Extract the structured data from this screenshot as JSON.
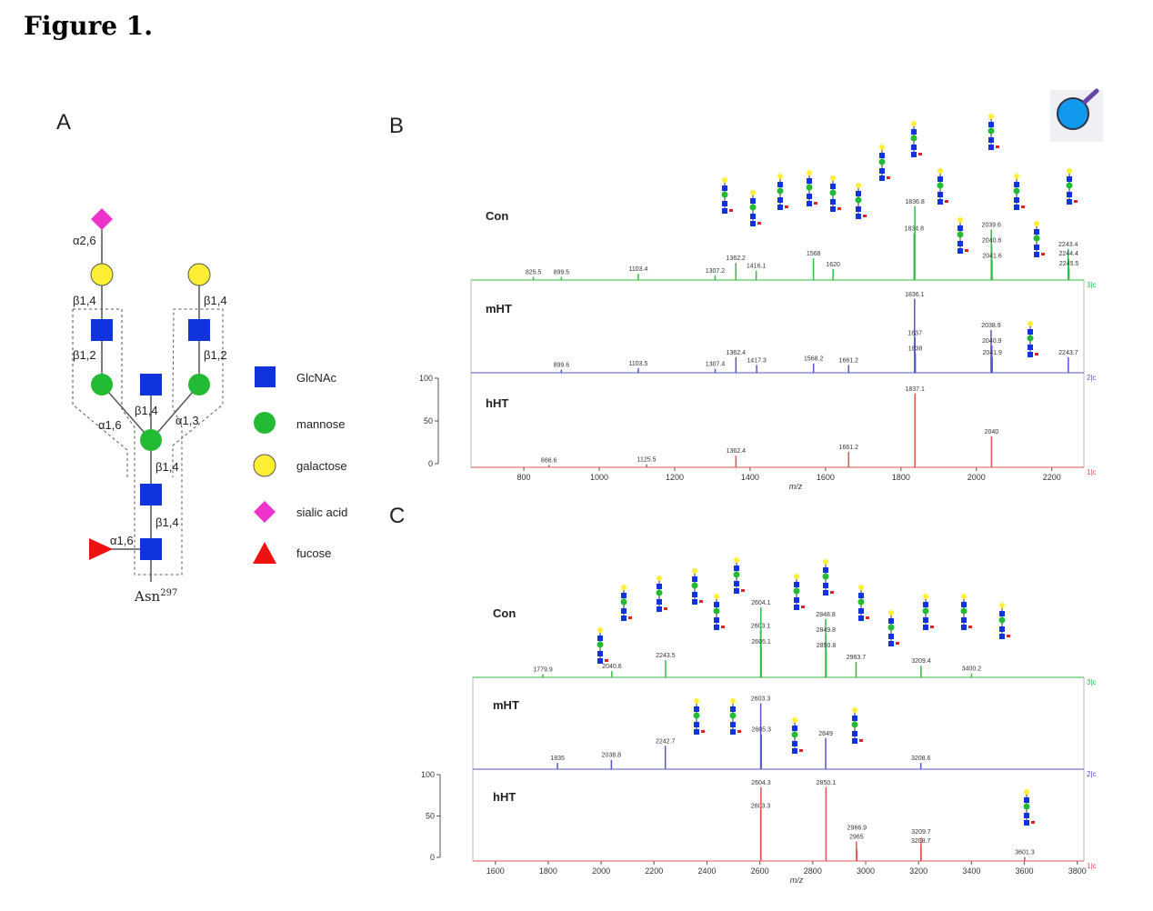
{
  "title": "Figure 1.",
  "panel_a": {
    "label": "A",
    "linkages": [
      "α2,6",
      "β1,4",
      "β1,2",
      "β1,4",
      "β1,2",
      "β1,4",
      "α1,6",
      "α1,3",
      "β1,4",
      "β1,4",
      "α1,6"
    ],
    "reducing_end": "Asn",
    "reducing_end_sup": "297",
    "legend": [
      "GlcNAc",
      "mannose",
      "galactose",
      "sialic acid",
      "fucose"
    ]
  },
  "panels": [
    {
      "label": "B",
      "xlim": [
        660,
        2285
      ],
      "xticks": [
        800,
        1000,
        1200,
        1400,
        1600,
        1800,
        2000,
        2200
      ],
      "xlabel": "m/z",
      "ylim": [
        0,
        100
      ],
      "yticks": [
        0,
        50,
        100
      ],
      "traces": [
        {
          "name": "Con",
          "scan": "3|c",
          "color": "#33bb44",
          "peaks": [
            {
              "mz": 825.5,
              "intensity": 4
            },
            {
              "mz": 899.5,
              "intensity": 4
            },
            {
              "mz": 1103.4,
              "intensity": 8
            },
            {
              "mz": 1307.2,
              "intensity": 6
            },
            {
              "mz": 1362.2,
              "intensity": 22
            },
            {
              "mz": 1416.1,
              "intensity": 12
            },
            {
              "mz": 1568.0,
              "intensity": 28
            },
            {
              "mz": 1620.0,
              "intensity": 14
            },
            {
              "mz": 1834.8,
              "intensity": 60
            },
            {
              "mz": 1836.8,
              "intensity": 95
            },
            {
              "mz": 2039.6,
              "intensity": 65
            },
            {
              "mz": 2040.6,
              "intensity": 45
            },
            {
              "mz": 2041.6,
              "intensity": 25
            },
            {
              "mz": 2243.4,
              "intensity": 40
            },
            {
              "mz": 2244.4,
              "intensity": 28
            },
            {
              "mz": 2245.5,
              "intensity": 15
            }
          ]
        },
        {
          "name": "mHT",
          "scan": "2|c",
          "color": "#5555cc",
          "peaks": [
            {
              "mz": 899.6,
              "intensity": 4
            },
            {
              "mz": 1103.5,
              "intensity": 6
            },
            {
              "mz": 1307.4,
              "intensity": 5
            },
            {
              "mz": 1362.4,
              "intensity": 20
            },
            {
              "mz": 1417.3,
              "intensity": 10
            },
            {
              "mz": 1568.2,
              "intensity": 12
            },
            {
              "mz": 1661.2,
              "intensity": 10
            },
            {
              "mz": 1836.1,
              "intensity": 95
            },
            {
              "mz": 1837.0,
              "intensity": 45
            },
            {
              "mz": 1838.0,
              "intensity": 25
            },
            {
              "mz": 2038.9,
              "intensity": 55
            },
            {
              "mz": 2040.9,
              "intensity": 35
            },
            {
              "mz": 2041.9,
              "intensity": 20
            },
            {
              "mz": 2243.7,
              "intensity": 20
            }
          ]
        },
        {
          "name": "hHT",
          "scan": "1|c",
          "color": "#e05555",
          "peaks": [
            {
              "mz": 866.6,
              "intensity": 3
            },
            {
              "mz": 1125.5,
              "intensity": 4
            },
            {
              "mz": 1362.4,
              "intensity": 15
            },
            {
              "mz": 1661.2,
              "intensity": 20
            },
            {
              "mz": 1837.1,
              "intensity": 95
            },
            {
              "mz": 2040.0,
              "intensity": 40
            }
          ]
        }
      ]
    },
    {
      "label": "C",
      "xlim": [
        1515,
        3825
      ],
      "xticks": [
        1600,
        1800,
        2000,
        2200,
        2400,
        2600,
        2800,
        3000,
        3200,
        3400,
        3600,
        3800
      ],
      "xlabel": "m/z",
      "ylim": [
        0,
        100
      ],
      "yticks": [
        0,
        50,
        100
      ],
      "traces": [
        {
          "name": "Con",
          "scan": "3|c",
          "color": "#33bb44",
          "peaks": [
            {
              "mz": 1779.9,
              "intensity": 4
            },
            {
              "mz": 2040.6,
              "intensity": 8
            },
            {
              "mz": 2243.5,
              "intensity": 22
            },
            {
              "mz": 2603.1,
              "intensity": 60
            },
            {
              "mz": 2604.1,
              "intensity": 90
            },
            {
              "mz": 2605.1,
              "intensity": 40
            },
            {
              "mz": 2848.8,
              "intensity": 75
            },
            {
              "mz": 2849.8,
              "intensity": 55
            },
            {
              "mz": 2850.8,
              "intensity": 35
            },
            {
              "mz": 2963.7,
              "intensity": 20
            },
            {
              "mz": 3209.4,
              "intensity": 15
            },
            {
              "mz": 3400.2,
              "intensity": 5
            }
          ]
        },
        {
          "name": "mHT",
          "scan": "2|c",
          "color": "#5555cc",
          "peaks": [
            {
              "mz": 1835.0,
              "intensity": 8
            },
            {
              "mz": 2038.8,
              "intensity": 12
            },
            {
              "mz": 2242.7,
              "intensity": 30
            },
            {
              "mz": 2603.3,
              "intensity": 85
            },
            {
              "mz": 2605.3,
              "intensity": 45
            },
            {
              "mz": 2849.0,
              "intensity": 40
            },
            {
              "mz": 3208.6,
              "intensity": 8
            }
          ]
        },
        {
          "name": "hHT",
          "scan": "1|c",
          "color": "#e05555",
          "peaks": [
            {
              "mz": 2603.3,
              "intensity": 65
            },
            {
              "mz": 2604.3,
              "intensity": 95
            },
            {
              "mz": 2850.1,
              "intensity": 95
            },
            {
              "mz": 2965.0,
              "intensity": 25
            },
            {
              "mz": 2966.9,
              "intensity": 15
            },
            {
              "mz": 3208.7,
              "intensity": 20
            },
            {
              "mz": 3209.7,
              "intensity": 30
            },
            {
              "mz": 3601.3,
              "intensity": 5
            }
          ]
        }
      ]
    }
  ]
}
